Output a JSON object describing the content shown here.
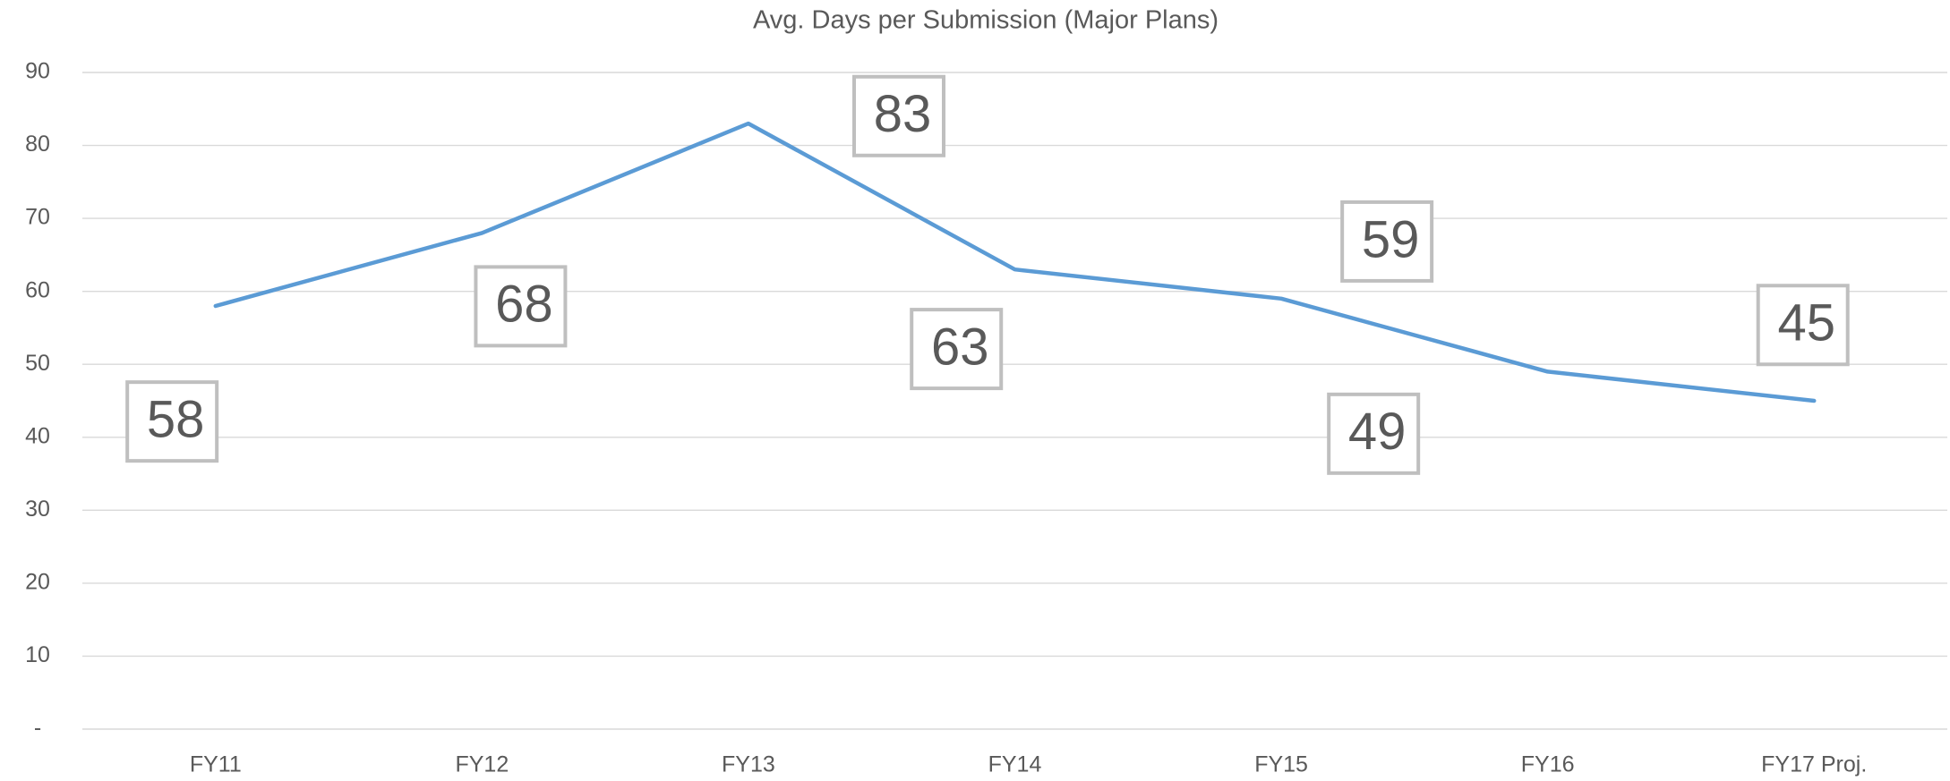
{
  "chart_data": {
    "type": "line",
    "title": "Avg. Days per Submission (Major Plans)",
    "categories": [
      "FY11",
      "FY12",
      "FY13",
      "FY14",
      "FY15",
      "FY16",
      "FY17 Proj."
    ],
    "series": [
      {
        "name": "Avg. Days per Submission",
        "color": "#5b9bd5",
        "values": [
          58,
          68,
          83,
          63,
          59,
          49,
          45
        ]
      }
    ],
    "ylim": [
      0,
      90
    ],
    "yticks": [
      {
        "value": 0,
        "label": "-"
      },
      10,
      20,
      30,
      40,
      50,
      60,
      70,
      80,
      90
    ],
    "grid": true,
    "data_labels": true
  }
}
